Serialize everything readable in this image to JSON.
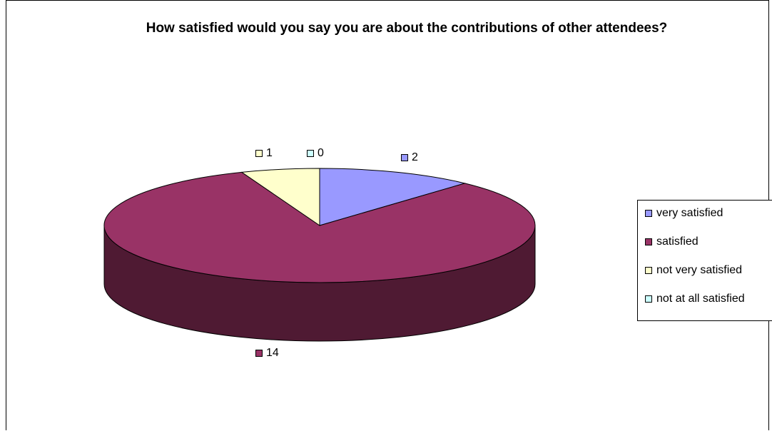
{
  "chart_data": {
    "type": "pie",
    "title": "How satisfied would you say you are about the contributions of other attendees?",
    "categories": [
      "very satisfied",
      "satisfied",
      "not very satisfied",
      "not at all satisfied"
    ],
    "values": [
      2,
      14,
      1,
      0
    ],
    "data_labels": [
      "2",
      "14",
      "1",
      "0"
    ],
    "colors": [
      "#9999ff",
      "#993366",
      "#ffffcc",
      "#ccffff"
    ],
    "side_colors": [
      "#5c5c99",
      "#4f1a33",
      "#99997a",
      "#7a9999"
    ],
    "legend_placement": "right",
    "style": "3d"
  }
}
